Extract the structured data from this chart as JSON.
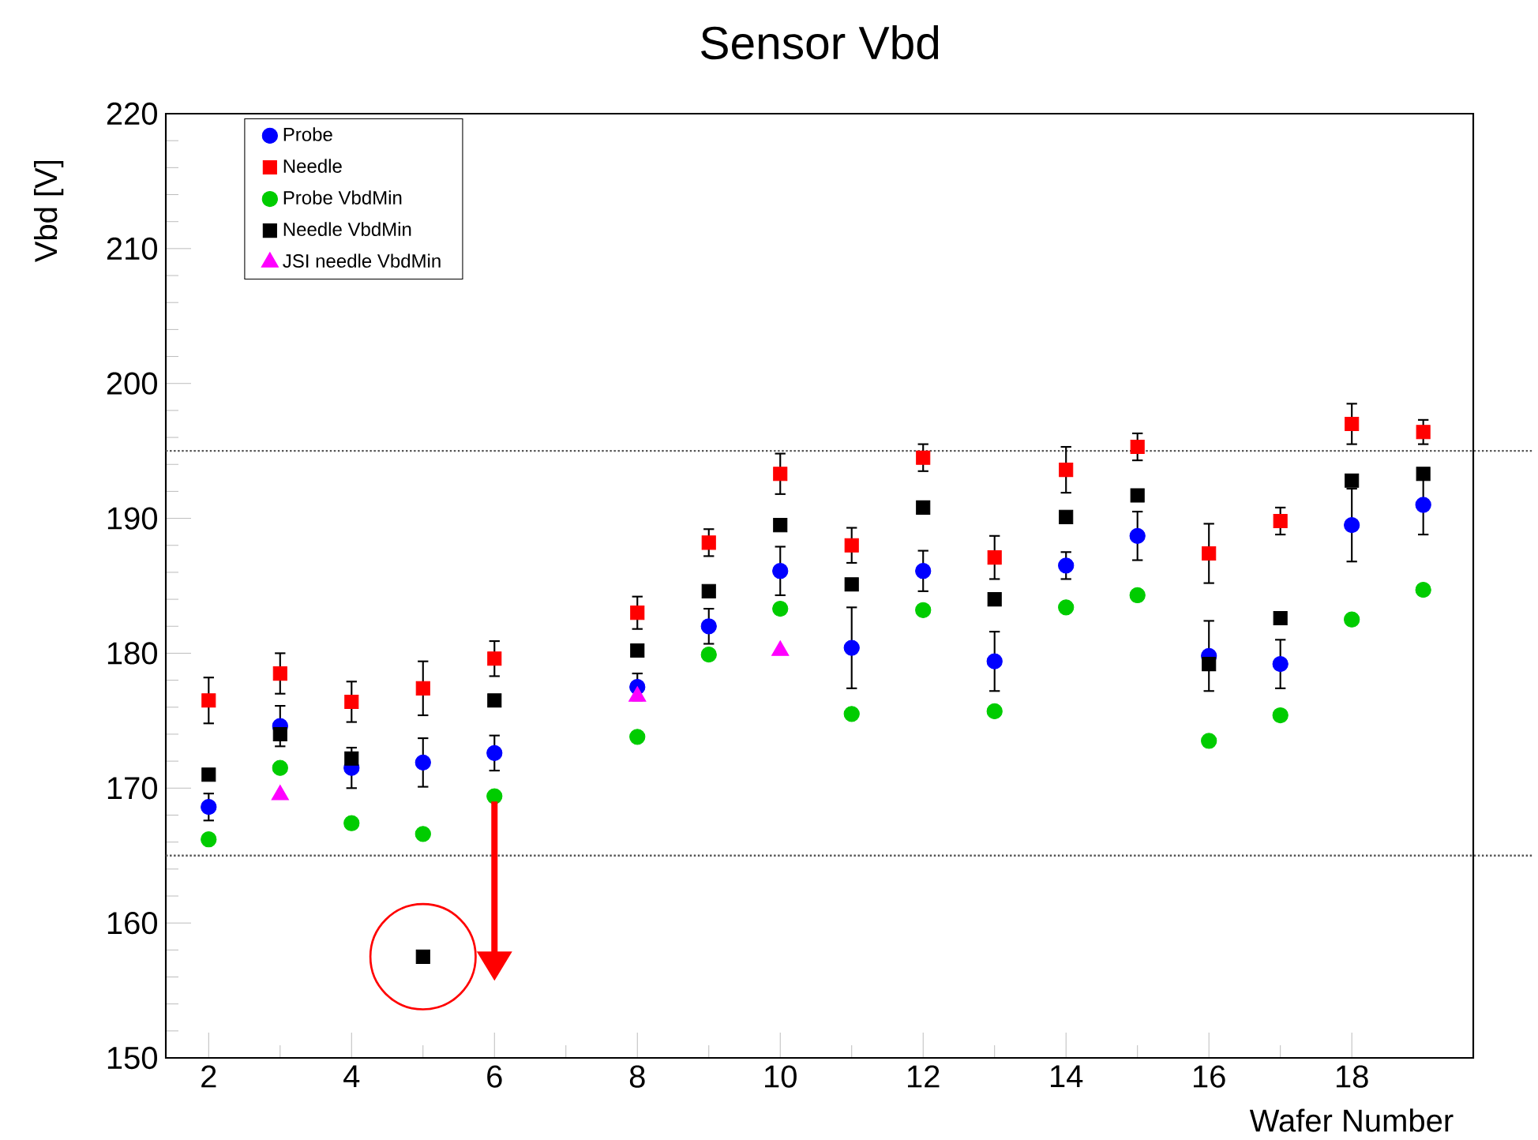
{
  "chart_data": {
    "type": "scatter",
    "title": "Sensor Vbd",
    "xlabel": "Wafer Number",
    "ylabel": "Vbd [V]",
    "xlim": [
      1.4,
      19.7
    ],
    "ylim": [
      150,
      220
    ],
    "xticks": [
      2,
      4,
      6,
      8,
      10,
      12,
      14,
      16,
      18
    ],
    "yticks": [
      150,
      160,
      170,
      180,
      190,
      200,
      210,
      220
    ],
    "grid": false,
    "legend": "top left",
    "x": [
      2,
      3,
      4,
      5,
      6,
      8,
      9,
      10,
      11,
      12,
      13,
      14,
      15,
      16,
      17,
      18,
      19
    ],
    "series": [
      {
        "name": "Probe",
        "color": "#0000ff",
        "marker": "circle",
        "values": [
          168.6,
          174.6,
          171.5,
          171.9,
          172.6,
          177.5,
          182.0,
          186.1,
          180.4,
          186.1,
          179.4,
          186.5,
          188.7,
          179.8,
          179.2,
          189.5,
          191.0
        ],
        "errors": [
          1.0,
          1.5,
          1.5,
          1.8,
          1.3,
          1.0,
          1.3,
          1.8,
          3.0,
          1.5,
          2.2,
          1.0,
          1.8,
          2.6,
          1.8,
          2.7,
          2.2
        ]
      },
      {
        "name": "Needle",
        "color": "#ff0000",
        "marker": "square",
        "values": [
          176.5,
          178.5,
          176.4,
          177.4,
          179.6,
          183.0,
          188.2,
          193.3,
          188.0,
          194.5,
          187.1,
          193.6,
          195.3,
          187.4,
          189.8,
          197.0,
          196.4
        ],
        "errors": [
          1.7,
          1.5,
          1.5,
          2.0,
          1.3,
          1.2,
          1.0,
          1.5,
          1.3,
          1.0,
          1.6,
          1.7,
          1.0,
          2.2,
          1.0,
          1.5,
          0.9
        ]
      },
      {
        "name": "Probe VbdMin",
        "color": "#00cc00",
        "marker": "circle",
        "values": [
          166.2,
          171.5,
          167.4,
          166.6,
          169.4,
          173.8,
          179.9,
          183.3,
          175.5,
          183.2,
          175.7,
          183.4,
          184.3,
          173.5,
          175.4,
          182.5,
          184.7
        ]
      },
      {
        "name": "Needle VbdMin",
        "color": "#000000",
        "marker": "square",
        "values": [
          171.0,
          174.0,
          172.2,
          157.5,
          176.5,
          180.2,
          184.6,
          189.5,
          185.1,
          190.8,
          184.0,
          190.1,
          191.7,
          179.2,
          182.6,
          192.8,
          193.3
        ]
      },
      {
        "name": "JSI needle VbdMin",
        "color": "#ff00ff",
        "marker": "triangle",
        "x": [
          3,
          8,
          10
        ],
        "values": [
          169.5,
          176.8,
          180.2
        ]
      }
    ],
    "ref_lines": [
      {
        "axis": "y",
        "value": 195,
        "color": "#555555",
        "line_style": "dotted"
      },
      {
        "axis": "y",
        "value": 165,
        "color": "#555555",
        "line_style": "dotted"
      }
    ]
  }
}
